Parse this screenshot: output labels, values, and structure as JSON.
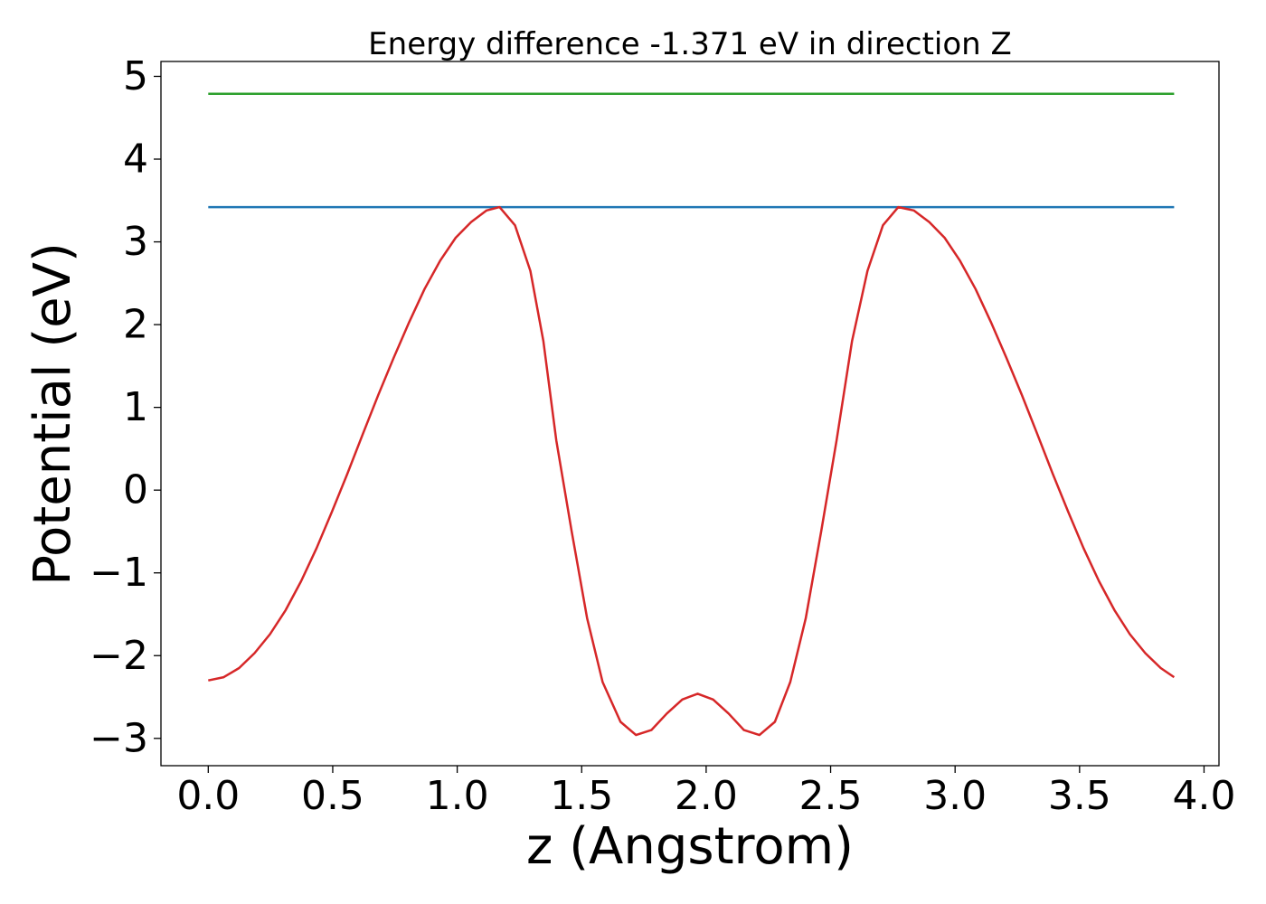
{
  "chart_data": {
    "type": "line",
    "title": "Energy difference -1.371 eV in direction Z",
    "xlabel": "z (Angstrom)",
    "ylabel": "Potential (eV)",
    "xlim": [
      -0.19,
      4.06
    ],
    "ylim": [
      -3.33,
      5.18
    ],
    "xticks": [
      0.0,
      0.5,
      1.0,
      1.5,
      2.0,
      2.5,
      3.0,
      3.5,
      4.0
    ],
    "xtick_labels": [
      "0.0",
      "0.5",
      "1.0",
      "1.5",
      "2.0",
      "2.5",
      "3.0",
      "3.5",
      "4.0"
    ],
    "yticks": [
      -3,
      -2,
      -1,
      0,
      1,
      2,
      3,
      4,
      5
    ],
    "ytick_labels": [
      "−3",
      "−2",
      "−1",
      "0",
      "1",
      "2",
      "3",
      "4",
      "5"
    ],
    "grid": false,
    "series": [
      {
        "color": "#2ca02c",
        "x": [
          0.0,
          3.88
        ],
        "y": [
          4.79,
          4.79
        ]
      },
      {
        "color": "#1f77b4",
        "x": [
          0.0,
          3.88
        ],
        "y": [
          3.42,
          3.42
        ]
      },
      {
        "color": "#d62728",
        "x": [
          0.0,
          0.062,
          0.124,
          0.186,
          0.248,
          0.311,
          0.373,
          0.435,
          0.497,
          0.559,
          0.621,
          0.683,
          0.745,
          0.807,
          0.869,
          0.931,
          0.994,
          1.056,
          1.118,
          1.17,
          1.232,
          1.294,
          1.346,
          1.398,
          1.46,
          1.522,
          1.584,
          1.656,
          1.718,
          1.78,
          1.842,
          1.904,
          1.966,
          2.028,
          2.09,
          2.152,
          2.214,
          2.276,
          2.338,
          2.4,
          2.462,
          2.524,
          2.586,
          2.648,
          2.71,
          2.772,
          2.834,
          2.896,
          2.958,
          3.02,
          3.082,
          3.144,
          3.206,
          3.268,
          3.33,
          3.392,
          3.454,
          3.516,
          3.578,
          3.64,
          3.702,
          3.764,
          3.826,
          3.88
        ],
        "y": [
          -2.3,
          -2.26,
          -2.15,
          -1.97,
          -1.74,
          -1.45,
          -1.1,
          -0.7,
          -0.26,
          0.2,
          0.68,
          1.15,
          1.6,
          2.03,
          2.43,
          2.77,
          3.05,
          3.24,
          3.38,
          3.42,
          3.2,
          2.65,
          1.8,
          0.6,
          -0.5,
          -1.55,
          -2.32,
          -2.8,
          -2.96,
          -2.9,
          -2.7,
          -2.53,
          -2.46,
          -2.53,
          -2.7,
          -2.9,
          -2.96,
          -2.8,
          -2.32,
          -1.55,
          -0.5,
          0.6,
          1.8,
          2.65,
          3.2,
          3.42,
          3.38,
          3.24,
          3.05,
          2.77,
          2.43,
          2.03,
          1.6,
          1.15,
          0.68,
          0.2,
          -0.26,
          -0.7,
          -1.1,
          -1.45,
          -1.74,
          -1.97,
          -2.15,
          -2.26
        ]
      }
    ]
  }
}
